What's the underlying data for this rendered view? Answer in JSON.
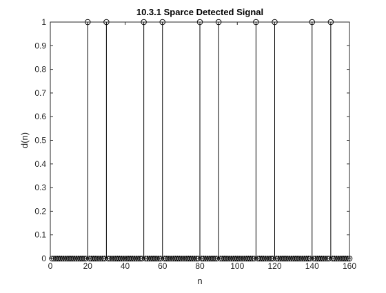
{
  "chart_data": {
    "type": "stem",
    "title": "10.3.1 Sparce Detected Signal",
    "xlabel": "n",
    "ylabel": "d(n)",
    "xlim": [
      0,
      160
    ],
    "ylim": [
      0,
      1
    ],
    "x_ticks": [
      0,
      20,
      40,
      60,
      80,
      100,
      120,
      140,
      160
    ],
    "y_ticks": [
      0,
      0.1,
      0.2,
      0.3,
      0.4,
      0.5,
      0.6,
      0.7,
      0.8,
      0.9,
      1
    ],
    "grid": false,
    "marker": "circle",
    "series_color": "#000000",
    "n_start": 1,
    "n_end": 160,
    "nonzero_n": [
      20,
      30,
      50,
      60,
      80,
      90,
      110,
      120,
      140,
      150
    ],
    "nonzero_value": 1,
    "zero_value": 0
  }
}
